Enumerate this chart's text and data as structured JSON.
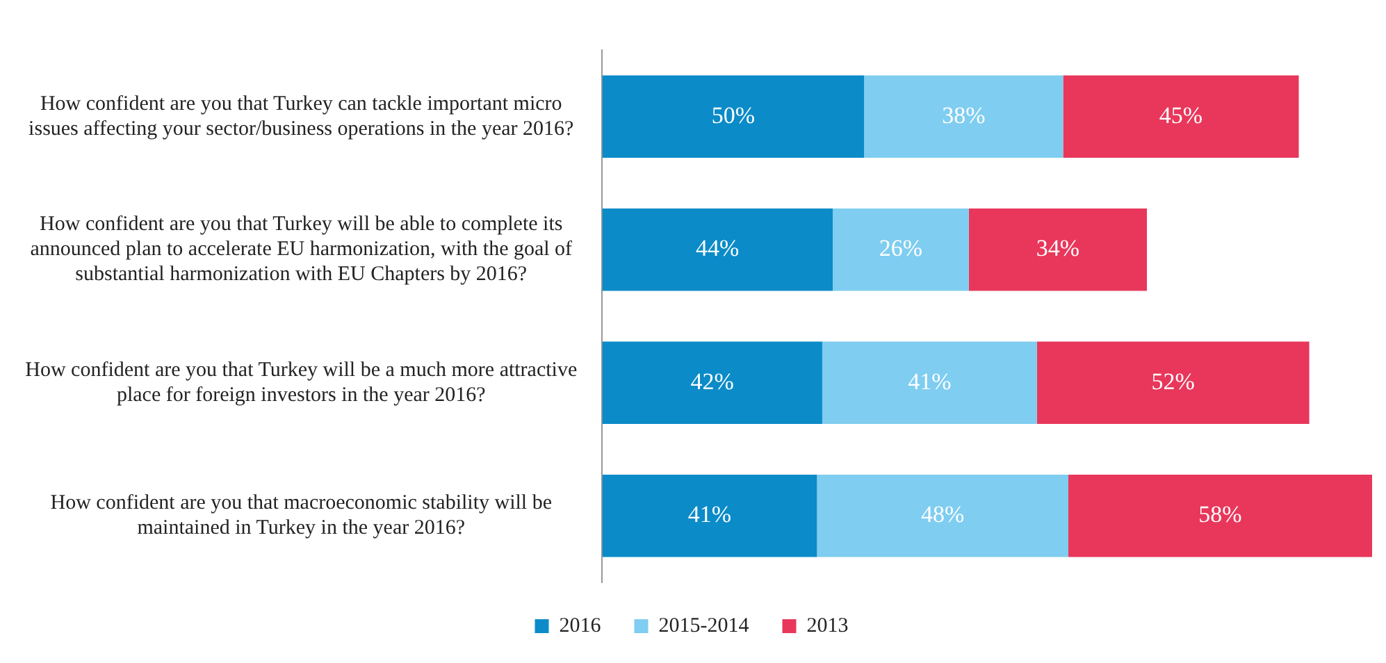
{
  "chart_data": {
    "type": "bar",
    "orientation": "horizontal",
    "stacked": true,
    "categories": [
      "How confident are you that Turkey can tackle important micro issues affecting your sector/business operations in the year 2016?",
      "How confident are you that Turkey will be able to complete its announced plan to accelerate EU harmonization, with the goal of substantial harmonization with EU Chapters by 2016?",
      "How confident are you that Turkey will be a much more attractive place for foreign investors in the year 2016?",
      "How confident are you that macroeconomic stability will be maintained in Turkey in the year 2016?"
    ],
    "series": [
      {
        "name": "2016",
        "color": "#0b8bc8",
        "values": [
          50,
          44,
          42,
          41
        ],
        "value_labels": [
          "50%",
          "44%",
          "42%",
          "41%"
        ]
      },
      {
        "name": "2015-2014",
        "color": "#7fcdf0",
        "values": [
          38,
          26,
          41,
          48
        ],
        "value_labels": [
          "38%",
          "26%",
          "41%",
          "48%"
        ]
      },
      {
        "name": "2013",
        "color": "#e8375b",
        "values": [
          45,
          34,
          52,
          58
        ],
        "value_labels": [
          "45%",
          "34%",
          "52%",
          "58%"
        ]
      }
    ],
    "legend": "bottom",
    "grid": false
  }
}
